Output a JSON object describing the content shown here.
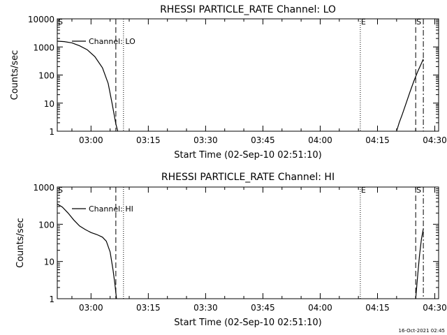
{
  "chart_data": [
    {
      "type": "line",
      "title": "RHESSI PARTICLE_RATE Channel: LO",
      "xlabel": "Start Time (02-Sep-10 02:51:10)",
      "ylabel": "Counts/sec",
      "yscale": "log",
      "ylim": [
        1,
        10000
      ],
      "xlim": [
        "02:51:10",
        "04:31:00"
      ],
      "xticks": [
        "03:00",
        "03:15",
        "03:30",
        "03:45",
        "04:00",
        "04:15",
        "04:30"
      ],
      "yticks": [
        "1",
        "10",
        "100",
        "1000",
        "10000"
      ],
      "legend": "Channel: LO",
      "grid": false,
      "markers": [
        {
          "label": "S",
          "time": "02:51:10",
          "style": "solid"
        },
        {
          "label": "",
          "time": "03:06:30",
          "style": "dashed"
        },
        {
          "label": "",
          "time": "03:08:30",
          "style": "dotted"
        },
        {
          "label": "E",
          "time": "04:10:30",
          "style": "dotted"
        },
        {
          "label": "S",
          "time": "04:25:00",
          "style": "dashed"
        },
        {
          "label": "",
          "time": "04:27:00",
          "style": "dashdot"
        }
      ],
      "series": [
        {
          "segments": [
            [
              [
                "02:51:10",
                1600
              ],
              [
                "02:53:00",
                1550
              ],
              [
                "02:55:00",
                1400
              ],
              [
                "02:57:00",
                1100
              ],
              [
                "02:59:00",
                800
              ],
              [
                "03:01:00",
                450
              ],
              [
                "03:03:00",
                180
              ],
              [
                "03:04:30",
                50
              ],
              [
                "03:05:30",
                10
              ],
              [
                "03:06:30",
                1.8
              ],
              [
                "03:07:00",
                1
              ]
            ],
            [
              [
                "04:20:00",
                1
              ],
              [
                "04:20:40",
                2
              ],
              [
                "04:21:30",
                4
              ],
              [
                "04:22:30",
                10
              ],
              [
                "04:23:30",
                25
              ],
              [
                "04:24:30",
                60
              ],
              [
                "04:25:30",
                130
              ],
              [
                "04:26:30",
                260
              ],
              [
                "04:27:00",
                370
              ]
            ]
          ]
        }
      ]
    },
    {
      "type": "line",
      "title": "RHESSI PARTICLE_RATE Channel: HI",
      "xlabel": "Start Time (02-Sep-10 02:51:10)",
      "ylabel": "Counts/sec",
      "yscale": "log",
      "ylim": [
        1,
        1000
      ],
      "xlim": [
        "02:51:10",
        "04:31:00"
      ],
      "xticks": [
        "03:00",
        "03:15",
        "03:30",
        "03:45",
        "04:00",
        "04:15",
        "04:30"
      ],
      "yticks": [
        "1",
        "10",
        "100",
        "1000"
      ],
      "legend": "Channel: HI",
      "grid": false,
      "markers": [
        {
          "label": "S",
          "time": "02:51:10",
          "style": "solid"
        },
        {
          "label": "",
          "time": "03:06:30",
          "style": "dashed"
        },
        {
          "label": "",
          "time": "03:08:30",
          "style": "dotted"
        },
        {
          "label": "E",
          "time": "04:10:30",
          "style": "dotted"
        },
        {
          "label": "S",
          "time": "04:25:00",
          "style": "dashed"
        },
        {
          "label": "",
          "time": "04:27:00",
          "style": "dashdot"
        }
      ],
      "series": [
        {
          "segments": [
            [
              [
                "02:51:10",
                350
              ],
              [
                "02:52:30",
                290
              ],
              [
                "02:54:00",
                200
              ],
              [
                "02:55:30",
                130
              ],
              [
                "02:57:00",
                90
              ],
              [
                "02:58:30",
                72
              ],
              [
                "03:00:00",
                60
              ],
              [
                "03:01:30",
                53
              ],
              [
                "03:03:00",
                45
              ],
              [
                "03:04:00",
                35
              ],
              [
                "03:05:00",
                18
              ],
              [
                "03:05:45",
                6
              ],
              [
                "03:06:15",
                2.5
              ],
              [
                "03:06:40",
                1
              ]
            ],
            [
              [
                "04:25:00",
                1
              ],
              [
                "04:25:30",
                4
              ],
              [
                "04:26:00",
                15
              ],
              [
                "04:26:30",
                40
              ],
              [
                "04:27:00",
                75
              ]
            ]
          ]
        }
      ]
    }
  ],
  "footer": {
    "timestamp": "16-Oct-2021 02:45"
  }
}
